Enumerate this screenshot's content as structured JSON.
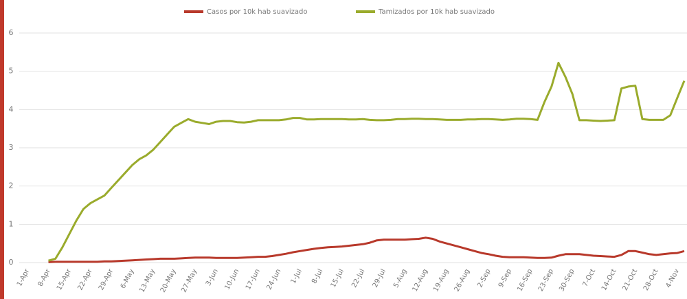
{
  "chart_data": {
    "type": "line",
    "categories": [
      "1-Apr",
      null,
      null,
      "8-Apr",
      null,
      null,
      "15-Apr",
      null,
      null,
      "22-Apr",
      null,
      null,
      "29-Apr",
      null,
      null,
      "6-May",
      null,
      null,
      "13-May",
      null,
      null,
      "20-May",
      null,
      null,
      "27-May",
      null,
      null,
      "3-Jun",
      null,
      null,
      "10-Jun",
      null,
      null,
      "17-Jun",
      null,
      null,
      "24-Jun",
      null,
      null,
      "1-Jul",
      null,
      null,
      "8-Jul",
      null,
      null,
      "15-Jul",
      null,
      null,
      "22-Jul",
      null,
      null,
      "29-Jul",
      null,
      null,
      "5-Aug",
      null,
      null,
      "12-Aug",
      null,
      null,
      "19-Aug",
      null,
      null,
      "26-Aug",
      null,
      null,
      "2-Sep",
      null,
      null,
      "9-Sep",
      null,
      null,
      "16-Sep",
      null,
      null,
      "23-Sep",
      null,
      null,
      "30-Sep",
      null,
      null,
      "7-Oct",
      null,
      null,
      "14-Oct",
      null,
      null,
      "21-Oct",
      null,
      null,
      "28-Oct",
      null,
      null,
      "4-Nov",
      null
    ],
    "series": [
      {
        "name": "Casos por 10k hab suavizado",
        "color": "#b8392b",
        "values": [
          null,
          null,
          null,
          0.01,
          0.02,
          0.02,
          0.02,
          0.02,
          0.02,
          0.02,
          0.02,
          0.03,
          0.03,
          0.04,
          0.05,
          0.06,
          0.07,
          0.08,
          0.09,
          0.1,
          0.1,
          0.1,
          0.11,
          0.12,
          0.13,
          0.13,
          0.13,
          0.12,
          0.12,
          0.12,
          0.12,
          0.13,
          0.14,
          0.15,
          0.15,
          0.17,
          0.2,
          0.23,
          0.27,
          0.3,
          0.33,
          0.36,
          0.38,
          0.4,
          0.41,
          0.42,
          0.44,
          0.46,
          0.48,
          0.52,
          0.58,
          0.6,
          0.6,
          0.6,
          0.6,
          0.61,
          0.62,
          0.65,
          0.62,
          0.55,
          0.5,
          0.45,
          0.4,
          0.35,
          0.3,
          0.25,
          0.22,
          0.18,
          0.15,
          0.14,
          0.14,
          0.14,
          0.13,
          0.12,
          0.12,
          0.13,
          0.18,
          0.22,
          0.22,
          0.22,
          0.2,
          0.18,
          0.17,
          0.16,
          0.15,
          0.2,
          0.3,
          0.3,
          0.26,
          0.22,
          0.2,
          0.22,
          0.24,
          0.25,
          0.3
        ]
      },
      {
        "name": "Tamizados por 10k hab suavizado",
        "color": "#9aab2c",
        "values": [
          null,
          null,
          null,
          0.05,
          0.1,
          0.4,
          0.75,
          1.1,
          1.4,
          1.55,
          1.65,
          1.75,
          1.95,
          2.15,
          2.35,
          2.55,
          2.7,
          2.8,
          2.95,
          3.15,
          3.35,
          3.55,
          3.65,
          3.75,
          3.68,
          3.65,
          3.62,
          3.68,
          3.7,
          3.7,
          3.67,
          3.66,
          3.68,
          3.72,
          3.72,
          3.72,
          3.72,
          3.74,
          3.78,
          3.78,
          3.74,
          3.74,
          3.75,
          3.75,
          3.75,
          3.75,
          3.74,
          3.74,
          3.75,
          3.73,
          3.72,
          3.72,
          3.73,
          3.75,
          3.75,
          3.76,
          3.76,
          3.75,
          3.75,
          3.74,
          3.73,
          3.73,
          3.73,
          3.74,
          3.74,
          3.75,
          3.75,
          3.74,
          3.73,
          3.74,
          3.76,
          3.76,
          3.75,
          3.73,
          4.2,
          4.6,
          5.22,
          4.85,
          4.4,
          3.72,
          3.72,
          3.71,
          3.7,
          3.71,
          3.72,
          4.55,
          4.6,
          4.62,
          3.75,
          3.73,
          3.73,
          3.73,
          3.85,
          4.3,
          4.75
        ]
      }
    ],
    "ylim": [
      0,
      6
    ],
    "yticks": [
      0,
      1,
      2,
      3,
      4,
      5,
      6
    ],
    "grid": true,
    "legend": "top"
  }
}
